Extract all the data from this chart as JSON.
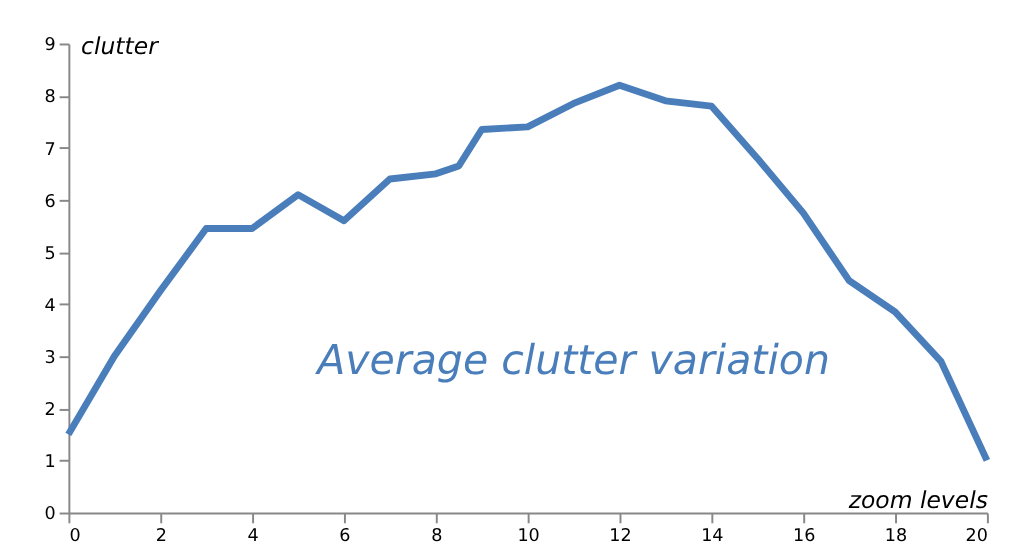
{
  "chart_data": {
    "type": "line",
    "xlabel": "zoom levels",
    "ylabel": "clutter",
    "annotations": [
      "Average clutter variation"
    ],
    "x": [
      0,
      1,
      2,
      3,
      4,
      5,
      6,
      7,
      8,
      8.5,
      9,
      10,
      11,
      12,
      13,
      14,
      15,
      16,
      17,
      18,
      19,
      20
    ],
    "series": [
      {
        "color": "#4a7ebb",
        "values": [
          1.5,
          3.0,
          4.25,
          5.45,
          5.45,
          6.1,
          5.6,
          6.4,
          6.5,
          6.65,
          7.35,
          7.4,
          7.85,
          8.2,
          7.9,
          7.8,
          6.8,
          5.75,
          4.45,
          3.85,
          2.9,
          1.0
        ]
      }
    ],
    "xlim": [
      0,
      20
    ],
    "xticks": [
      0,
      2,
      4,
      6,
      8,
      10,
      12,
      14,
      16,
      18,
      20
    ],
    "ylim": [
      0,
      9
    ],
    "yticks": [
      0,
      1,
      2,
      3,
      4,
      5,
      6,
      7,
      8,
      9
    ],
    "grid": false,
    "marker": "none",
    "line_style": "solid"
  }
}
